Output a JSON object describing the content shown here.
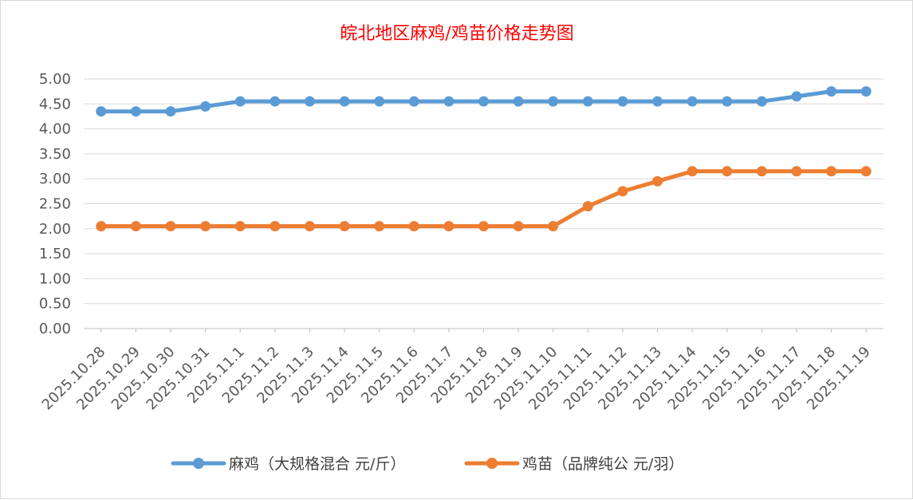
{
  "chart_data": {
    "type": "line",
    "title": "皖北地区麻鸡/鸡苗价格走势图",
    "xlabel": "",
    "ylabel": "",
    "categories": [
      "2025.10.28",
      "2025.10.29",
      "2025.10.30",
      "2025.10.31",
      "2025.11.1",
      "2025.11.2",
      "2025.11.3",
      "2025.11.4",
      "2025.11.5",
      "2025.11.6",
      "2025.11.7",
      "2025.11.8",
      "2025.11.9",
      "2025.11.10",
      "2025.11.11",
      "2025.11.12",
      "2025.11.13",
      "2025.11.14",
      "2025.11.15",
      "2025.11.16",
      "2025.11.17",
      "2025.11.18",
      "2025.11.19"
    ],
    "ylim": [
      0,
      5
    ],
    "yticks": [
      "0.00",
      "0.50",
      "1.00",
      "1.50",
      "2.00",
      "2.50",
      "3.00",
      "3.50",
      "4.00",
      "4.50",
      "5.00"
    ],
    "grid": true,
    "legend_position": "bottom",
    "series": [
      {
        "name": "麻鸡（大规格混合 元/斤）",
        "color": "#5b9bd5",
        "values": [
          4.35,
          4.35,
          4.35,
          4.45,
          4.55,
          4.55,
          4.55,
          4.55,
          4.55,
          4.55,
          4.55,
          4.55,
          4.55,
          4.55,
          4.55,
          4.55,
          4.55,
          4.55,
          4.55,
          4.55,
          4.65,
          4.75,
          4.75
        ]
      },
      {
        "name": "鸡苗（品牌纯公 元/羽）",
        "color": "#ed7d31",
        "values": [
          2.05,
          2.05,
          2.05,
          2.05,
          2.05,
          2.05,
          2.05,
          2.05,
          2.05,
          2.05,
          2.05,
          2.05,
          2.05,
          2.05,
          2.45,
          2.75,
          2.95,
          3.15,
          3.15,
          3.15,
          3.15,
          3.15,
          3.15
        ]
      }
    ]
  }
}
